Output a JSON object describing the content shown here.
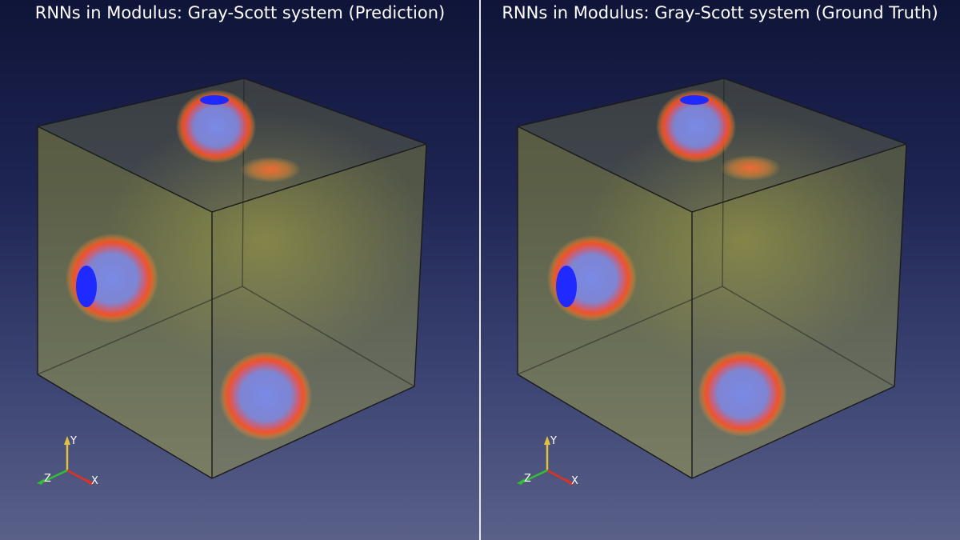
{
  "panels": [
    {
      "title": "RNNs in Modulus: Gray-Scott system (Prediction)"
    },
    {
      "title": "RNNs in Modulus: Gray-Scott system (Ground Truth)"
    }
  ],
  "axes": {
    "x": "X",
    "y": "Y",
    "z": "Z"
  },
  "colors": {
    "volume": "#c8c832",
    "ring": "#ff5a1e",
    "core": "#7080e0",
    "deep_core": "#1e2aff",
    "axis_x": "#e03020",
    "axis_y": "#e0c040",
    "axis_z": "#30c030"
  }
}
